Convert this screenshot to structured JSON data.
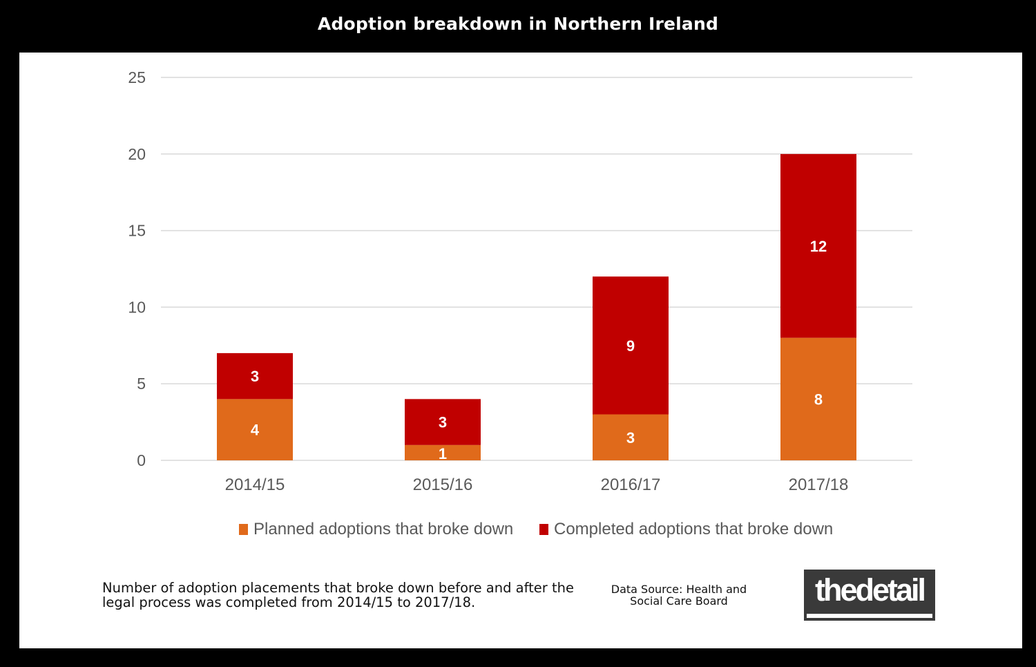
{
  "page": {
    "title": "Adoption breakdown in Northern Ireland",
    "caption": "Number of adoption placements that broke down before and after the legal process was completed from 2014/15 to 2017/18.",
    "source": "Data Source: Health and Social Care Board",
    "logo_text": "thedetail"
  },
  "chart_data": {
    "type": "bar",
    "stacked": true,
    "categories": [
      "2014/15",
      "2015/16",
      "2016/17",
      "2017/18"
    ],
    "series": [
      {
        "name": "Planned adoptions that broke down",
        "values": [
          4,
          1,
          3,
          8
        ],
        "color": "#E06A1B"
      },
      {
        "name": "Completed adoptions that broke down",
        "values": [
          3,
          3,
          9,
          12
        ],
        "color": "#C00000"
      }
    ],
    "title": "",
    "xlabel": "",
    "ylabel": "",
    "ylim": [
      0,
      25
    ],
    "yticks": [
      0,
      5,
      10,
      15,
      20,
      25
    ],
    "grid": true,
    "legend_position": "bottom",
    "data_labels": true
  }
}
